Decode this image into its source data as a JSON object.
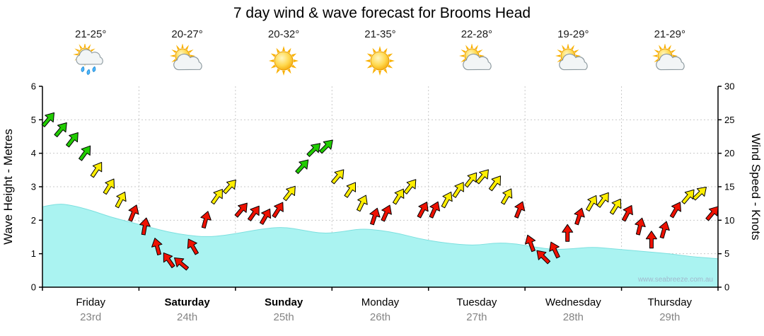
{
  "title": "7 day wind & wave forecast for Brooms Head",
  "watermark": "www.seabreeze.com.au",
  "axes": {
    "left_title": "Wave Height - Metres",
    "right_title": "Wind Speed - Knots",
    "left_ticks": [
      0,
      1,
      2,
      3,
      4,
      5,
      6
    ],
    "right_ticks": [
      0,
      5,
      10,
      15,
      20,
      25,
      30
    ]
  },
  "days": [
    {
      "name": "Friday",
      "date": "23rd",
      "temp": "21-25°",
      "icon": "sun-cloud-rain",
      "bold": false
    },
    {
      "name": "Saturday",
      "date": "24th",
      "temp": "20-27°",
      "icon": "sun-cloud",
      "bold": true
    },
    {
      "name": "Sunday",
      "date": "25th",
      "temp": "20-32°",
      "icon": "sun",
      "bold": true
    },
    {
      "name": "Monday",
      "date": "26th",
      "temp": "21-35°",
      "icon": "sun",
      "bold": false
    },
    {
      "name": "Tuesday",
      "date": "27th",
      "temp": "22-28°",
      "icon": "sun-cloud",
      "bold": false
    },
    {
      "name": "Wednesday",
      "date": "28th",
      "temp": "19-29°",
      "icon": "sun-cloud",
      "bold": false
    },
    {
      "name": "Thursday",
      "date": "29th",
      "temp": "21-29°",
      "icon": "sun-cloud",
      "bold": false
    }
  ],
  "chart_data": {
    "type": "area",
    "overlay": "wind-barbs",
    "x_unit": "days",
    "x_range": [
      0,
      7
    ],
    "grid": true,
    "wave_height_m": {
      "ylabel": "Wave Height - Metres",
      "ylim": [
        0,
        6
      ],
      "points": [
        [
          0,
          2.4
        ],
        [
          0.15,
          2.5
        ],
        [
          0.3,
          2.45
        ],
        [
          0.5,
          2.3
        ],
        [
          0.7,
          2.1
        ],
        [
          0.9,
          1.95
        ],
        [
          1.1,
          1.8
        ],
        [
          1.3,
          1.65
        ],
        [
          1.5,
          1.55
        ],
        [
          1.7,
          1.5
        ],
        [
          1.9,
          1.55
        ],
        [
          2.1,
          1.65
        ],
        [
          2.3,
          1.75
        ],
        [
          2.5,
          1.8
        ],
        [
          2.7,
          1.7
        ],
        [
          2.9,
          1.6
        ],
        [
          3.1,
          1.65
        ],
        [
          3.3,
          1.75
        ],
        [
          3.5,
          1.7
        ],
        [
          3.7,
          1.6
        ],
        [
          3.9,
          1.45
        ],
        [
          4.1,
          1.35
        ],
        [
          4.3,
          1.28
        ],
        [
          4.5,
          1.25
        ],
        [
          4.7,
          1.33
        ],
        [
          4.9,
          1.3
        ],
        [
          5.1,
          1.2
        ],
        [
          5.3,
          1.12
        ],
        [
          5.5,
          1.15
        ],
        [
          5.7,
          1.2
        ],
        [
          5.9,
          1.15
        ],
        [
          6.1,
          1.1
        ],
        [
          6.3,
          1.05
        ],
        [
          6.5,
          1.0
        ],
        [
          6.7,
          0.92
        ],
        [
          7,
          0.85
        ]
      ]
    },
    "wind_speed_kn": {
      "ylabel": "Wind Speed - Knots",
      "ylim": [
        0,
        30
      ],
      "color_thresholds": {
        "green_min_kn": 18,
        "yellow_min_kn": 12
      },
      "barb_format": [
        "t_days",
        "knots",
        "angle_deg_cw_from_up"
      ],
      "barbs": [
        [
          0.06,
          25,
          40
        ],
        [
          0.19,
          23.5,
          40
        ],
        [
          0.31,
          22,
          38
        ],
        [
          0.44,
          20,
          36
        ],
        [
          0.56,
          17.5,
          34
        ],
        [
          0.69,
          15,
          32
        ],
        [
          0.81,
          13,
          28
        ],
        [
          0.94,
          11,
          22
        ],
        [
          1.06,
          9,
          10
        ],
        [
          1.19,
          6,
          -15
        ],
        [
          1.31,
          4,
          -35
        ],
        [
          1.44,
          3.5,
          -50
        ],
        [
          1.56,
          6,
          -30
        ],
        [
          1.69,
          10,
          15
        ],
        [
          1.81,
          13.5,
          35
        ],
        [
          1.94,
          15,
          42
        ],
        [
          2.06,
          11.5,
          40
        ],
        [
          2.19,
          11,
          35
        ],
        [
          2.31,
          10.5,
          30
        ],
        [
          2.44,
          11.5,
          32
        ],
        [
          2.56,
          14,
          38
        ],
        [
          2.69,
          18,
          42
        ],
        [
          2.81,
          20.5,
          45
        ],
        [
          2.94,
          21,
          45
        ],
        [
          3.06,
          16.5,
          40
        ],
        [
          3.19,
          14.5,
          34
        ],
        [
          3.31,
          12.5,
          26
        ],
        [
          3.44,
          10.5,
          18
        ],
        [
          3.56,
          11,
          24
        ],
        [
          3.69,
          13.5,
          32
        ],
        [
          3.81,
          15,
          38
        ],
        [
          3.94,
          11.5,
          28
        ],
        [
          4.06,
          11.5,
          24
        ],
        [
          4.19,
          13,
          28
        ],
        [
          4.31,
          14.5,
          33
        ],
        [
          4.44,
          16,
          38
        ],
        [
          4.56,
          16.5,
          40
        ],
        [
          4.69,
          15.5,
          36
        ],
        [
          4.81,
          13.5,
          30
        ],
        [
          4.94,
          11.5,
          22
        ],
        [
          5.06,
          6.5,
          -20
        ],
        [
          5.19,
          4.5,
          -45
        ],
        [
          5.31,
          5.5,
          -25
        ],
        [
          5.44,
          8,
          0
        ],
        [
          5.56,
          10.5,
          18
        ],
        [
          5.69,
          12.5,
          30
        ],
        [
          5.81,
          13,
          36
        ],
        [
          5.94,
          12,
          32
        ],
        [
          6.06,
          11,
          28
        ],
        [
          6.19,
          9,
          14
        ],
        [
          6.31,
          7,
          0
        ],
        [
          6.44,
          8.5,
          16
        ],
        [
          6.56,
          11.5,
          30
        ],
        [
          6.69,
          13.5,
          40
        ],
        [
          6.81,
          14,
          46
        ],
        [
          6.94,
          11,
          40
        ]
      ]
    },
    "colors": {
      "wave_fill": "#aaf3f1",
      "wave_edge": "#7de0df",
      "barb_green": "#21cc00",
      "barb_yellow": "#ffee00",
      "barb_red": "#ee1100",
      "barb_outline": "#000000",
      "grid": "#c9c9c9",
      "axis": "#000000"
    }
  }
}
